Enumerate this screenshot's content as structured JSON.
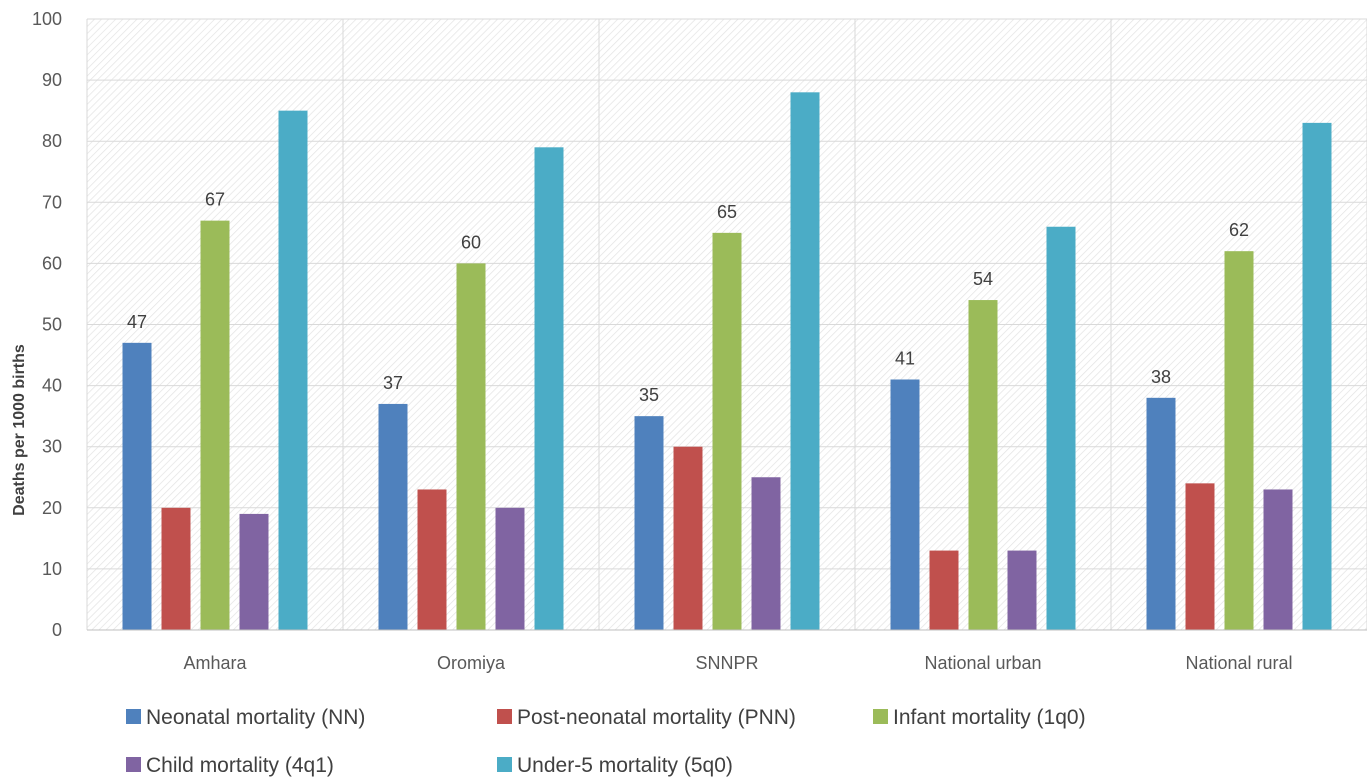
{
  "chart_data": {
    "type": "bar",
    "title": "",
    "xlabel": "",
    "ylabel": "Deaths per 1000 births",
    "ylim": [
      0,
      100
    ],
    "yticks": [
      0,
      10,
      20,
      30,
      40,
      50,
      60,
      70,
      80,
      90,
      100
    ],
    "grid": true,
    "legend_position": "bottom",
    "categories": [
      "Amhara",
      "Oromiya",
      "SNNPR",
      "National urban",
      "National rural"
    ],
    "series": [
      {
        "name": "Neonatal mortality (NN)",
        "color": "#4f81bd",
        "values": [
          47,
          37,
          35,
          41,
          38
        ],
        "labels": [
          "47",
          "37",
          "35",
          "41",
          "38"
        ]
      },
      {
        "name": "Post-neonatal mortality (PNN)",
        "color": "#c0504d",
        "values": [
          20,
          23,
          30,
          13,
          24
        ],
        "labels": null
      },
      {
        "name": "Infant mortality (1q0)",
        "color": "#9bbb59",
        "values": [
          67,
          60,
          65,
          54,
          62
        ],
        "labels": [
          "67",
          "60",
          "65",
          "54",
          "62"
        ]
      },
      {
        "name": "Child mortality (4q1)",
        "color": "#8064a2",
        "values": [
          19,
          20,
          25,
          13,
          23
        ],
        "labels": null
      },
      {
        "name": "Under-5 mortality (5q0)",
        "color": "#4bacc6",
        "values": [
          85,
          79,
          88,
          66,
          83
        ],
        "labels": null
      }
    ]
  }
}
